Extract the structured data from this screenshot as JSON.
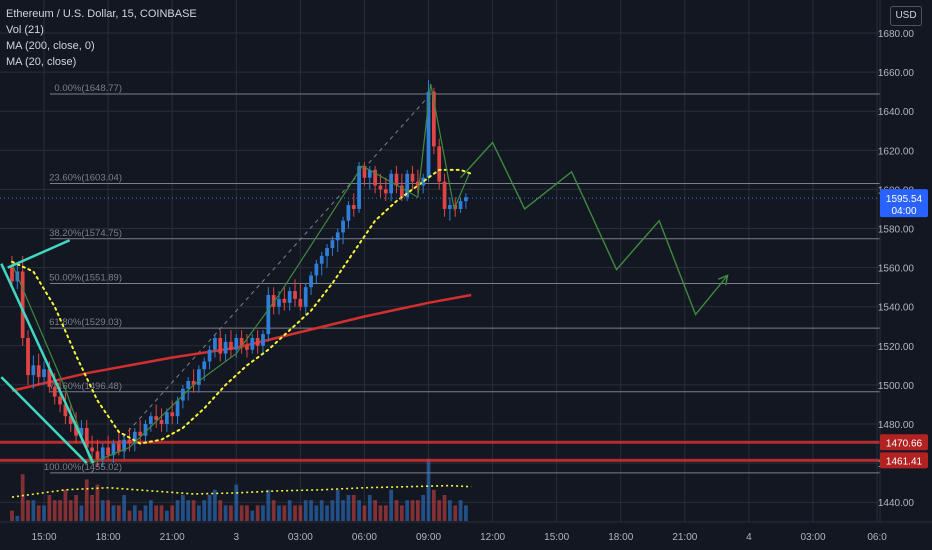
{
  "legend": {
    "symbol": "Ethereum / U.S. Dollar, 15, COINBASE",
    "vol": "Vol (21)",
    "ma200": "MA (200, close, 0)",
    "ma20": "MA (20, close)"
  },
  "currency_button": "USD",
  "colors": {
    "background": "#131722",
    "grid": "#2a2e39",
    "up": "#2f7ed8",
    "down": "#e04545",
    "ma200": "#d32f2f",
    "ma20": "#f5f53a",
    "trendline": "#3ed8c3",
    "projection": "#3f8a3f",
    "fib": "#7b7f8a"
  },
  "chart_data": {
    "type": "candlestick",
    "symbol": "Ethereum / U.S. Dollar, 15, COINBASE",
    "ylim": [
      1430,
      1690
    ],
    "price_ticks": [
      1440,
      1460,
      1480,
      1500,
      1520,
      1540,
      1560,
      1580,
      1600,
      1620,
      1640,
      1660,
      1680
    ],
    "price_tick_labels": [
      "1440.00",
      "1460.00",
      "1480.00",
      "1500.00",
      "1520.00",
      "1540.00",
      "1560.00",
      "1580.00",
      "1600.00",
      "1620.00",
      "1640.00",
      "1660.00",
      "1680.00"
    ],
    "time_labels": [
      "15:00",
      "18:00",
      "21:00",
      "3",
      "03:00",
      "06:00",
      "09:00",
      "12:00",
      "15:00",
      "18:00",
      "21:00",
      "4",
      "03:00",
      "06:0"
    ],
    "time_label_hours": [
      15,
      18,
      21,
      24,
      27,
      30,
      33,
      36,
      39,
      42,
      45,
      48,
      51,
      54
    ],
    "candles": [
      {
        "t": 13.5,
        "o": 1560,
        "h": 1566,
        "l": 1550,
        "c": 1553
      },
      {
        "t": 13.75,
        "o": 1553,
        "h": 1562,
        "l": 1549,
        "c": 1558
      },
      {
        "t": 14.0,
        "o": 1558,
        "h": 1566,
        "l": 1520,
        "c": 1524
      },
      {
        "t": 14.25,
        "o": 1524,
        "h": 1528,
        "l": 1500,
        "c": 1505
      },
      {
        "t": 14.5,
        "o": 1505,
        "h": 1515,
        "l": 1498,
        "c": 1510
      },
      {
        "t": 14.75,
        "o": 1510,
        "h": 1516,
        "l": 1500,
        "c": 1504
      },
      {
        "t": 15.0,
        "o": 1504,
        "h": 1512,
        "l": 1500,
        "c": 1508
      },
      {
        "t": 15.25,
        "o": 1508,
        "h": 1512,
        "l": 1496,
        "c": 1499
      },
      {
        "t": 15.5,
        "o": 1499,
        "h": 1506,
        "l": 1490,
        "c": 1494
      },
      {
        "t": 15.75,
        "o": 1494,
        "h": 1502,
        "l": 1486,
        "c": 1490
      },
      {
        "t": 16.0,
        "o": 1490,
        "h": 1496,
        "l": 1480,
        "c": 1484
      },
      {
        "t": 16.25,
        "o": 1484,
        "h": 1490,
        "l": 1476,
        "c": 1480
      },
      {
        "t": 16.5,
        "o": 1480,
        "h": 1486,
        "l": 1470,
        "c": 1474
      },
      {
        "t": 16.75,
        "o": 1474,
        "h": 1482,
        "l": 1470,
        "c": 1478
      },
      {
        "t": 17.0,
        "o": 1478,
        "h": 1482,
        "l": 1466,
        "c": 1468
      },
      {
        "t": 17.25,
        "o": 1468,
        "h": 1474,
        "l": 1462,
        "c": 1466
      },
      {
        "t": 17.5,
        "o": 1466,
        "h": 1472,
        "l": 1458,
        "c": 1462
      },
      {
        "t": 17.75,
        "o": 1462,
        "h": 1470,
        "l": 1458,
        "c": 1468
      },
      {
        "t": 18.0,
        "o": 1468,
        "h": 1474,
        "l": 1462,
        "c": 1464
      },
      {
        "t": 18.25,
        "o": 1464,
        "h": 1472,
        "l": 1460,
        "c": 1470
      },
      {
        "t": 18.5,
        "o": 1470,
        "h": 1476,
        "l": 1464,
        "c": 1466
      },
      {
        "t": 18.75,
        "o": 1466,
        "h": 1474,
        "l": 1462,
        "c": 1472
      },
      {
        "t": 19.0,
        "o": 1472,
        "h": 1478,
        "l": 1466,
        "c": 1470
      },
      {
        "t": 19.25,
        "o": 1470,
        "h": 1478,
        "l": 1466,
        "c": 1476
      },
      {
        "t": 19.5,
        "o": 1476,
        "h": 1482,
        "l": 1470,
        "c": 1474
      },
      {
        "t": 19.75,
        "o": 1474,
        "h": 1482,
        "l": 1470,
        "c": 1480
      },
      {
        "t": 20.0,
        "o": 1480,
        "h": 1486,
        "l": 1476,
        "c": 1484
      },
      {
        "t": 20.25,
        "o": 1484,
        "h": 1490,
        "l": 1478,
        "c": 1482
      },
      {
        "t": 20.5,
        "o": 1482,
        "h": 1488,
        "l": 1476,
        "c": 1480
      },
      {
        "t": 20.75,
        "o": 1480,
        "h": 1488,
        "l": 1476,
        "c": 1486
      },
      {
        "t": 21.0,
        "o": 1486,
        "h": 1492,
        "l": 1480,
        "c": 1484
      },
      {
        "t": 21.25,
        "o": 1484,
        "h": 1494,
        "l": 1480,
        "c": 1492
      },
      {
        "t": 21.5,
        "o": 1492,
        "h": 1500,
        "l": 1488,
        "c": 1498
      },
      {
        "t": 21.75,
        "o": 1498,
        "h": 1504,
        "l": 1492,
        "c": 1502
      },
      {
        "t": 22.0,
        "o": 1502,
        "h": 1508,
        "l": 1496,
        "c": 1500
      },
      {
        "t": 22.25,
        "o": 1500,
        "h": 1510,
        "l": 1496,
        "c": 1508
      },
      {
        "t": 22.5,
        "o": 1508,
        "h": 1514,
        "l": 1502,
        "c": 1512
      },
      {
        "t": 22.75,
        "o": 1512,
        "h": 1520,
        "l": 1508,
        "c": 1518
      },
      {
        "t": 23.0,
        "o": 1518,
        "h": 1526,
        "l": 1514,
        "c": 1524
      },
      {
        "t": 23.25,
        "o": 1524,
        "h": 1528,
        "l": 1512,
        "c": 1516
      },
      {
        "t": 23.5,
        "o": 1516,
        "h": 1526,
        "l": 1512,
        "c": 1522
      },
      {
        "t": 23.75,
        "o": 1522,
        "h": 1528,
        "l": 1514,
        "c": 1518
      },
      {
        "t": 24.0,
        "o": 1518,
        "h": 1526,
        "l": 1514,
        "c": 1524
      },
      {
        "t": 24.25,
        "o": 1524,
        "h": 1528,
        "l": 1516,
        "c": 1520
      },
      {
        "t": 24.5,
        "o": 1520,
        "h": 1526,
        "l": 1514,
        "c": 1518
      },
      {
        "t": 24.75,
        "o": 1518,
        "h": 1526,
        "l": 1516,
        "c": 1524
      },
      {
        "t": 25.0,
        "o": 1524,
        "h": 1528,
        "l": 1516,
        "c": 1520
      },
      {
        "t": 25.25,
        "o": 1520,
        "h": 1528,
        "l": 1516,
        "c": 1526
      },
      {
        "t": 25.5,
        "o": 1526,
        "h": 1550,
        "l": 1522,
        "c": 1546
      },
      {
        "t": 25.75,
        "o": 1546,
        "h": 1550,
        "l": 1536,
        "c": 1540
      },
      {
        "t": 26.0,
        "o": 1540,
        "h": 1548,
        "l": 1536,
        "c": 1544
      },
      {
        "t": 26.25,
        "o": 1544,
        "h": 1550,
        "l": 1538,
        "c": 1542
      },
      {
        "t": 26.5,
        "o": 1542,
        "h": 1550,
        "l": 1538,
        "c": 1548
      },
      {
        "t": 26.75,
        "o": 1548,
        "h": 1554,
        "l": 1540,
        "c": 1544
      },
      {
        "t": 27.0,
        "o": 1544,
        "h": 1552,
        "l": 1538,
        "c": 1540
      },
      {
        "t": 27.25,
        "o": 1540,
        "h": 1552,
        "l": 1536,
        "c": 1550
      },
      {
        "t": 27.5,
        "o": 1550,
        "h": 1558,
        "l": 1546,
        "c": 1556
      },
      {
        "t": 27.75,
        "o": 1556,
        "h": 1564,
        "l": 1552,
        "c": 1562
      },
      {
        "t": 28.0,
        "o": 1562,
        "h": 1568,
        "l": 1556,
        "c": 1566
      },
      {
        "t": 28.25,
        "o": 1566,
        "h": 1572,
        "l": 1560,
        "c": 1570
      },
      {
        "t": 28.5,
        "o": 1570,
        "h": 1576,
        "l": 1566,
        "c": 1574
      },
      {
        "t": 28.75,
        "o": 1574,
        "h": 1580,
        "l": 1568,
        "c": 1578
      },
      {
        "t": 29.0,
        "o": 1578,
        "h": 1586,
        "l": 1572,
        "c": 1584
      },
      {
        "t": 29.25,
        "o": 1584,
        "h": 1594,
        "l": 1580,
        "c": 1592
      },
      {
        "t": 29.5,
        "o": 1592,
        "h": 1598,
        "l": 1586,
        "c": 1590
      },
      {
        "t": 29.75,
        "o": 1590,
        "h": 1614,
        "l": 1588,
        "c": 1612
      },
      {
        "t": 30.0,
        "o": 1612,
        "h": 1614,
        "l": 1602,
        "c": 1606
      },
      {
        "t": 30.25,
        "o": 1606,
        "h": 1612,
        "l": 1600,
        "c": 1610
      },
      {
        "t": 30.5,
        "o": 1610,
        "h": 1612,
        "l": 1598,
        "c": 1602
      },
      {
        "t": 30.75,
        "o": 1602,
        "h": 1608,
        "l": 1596,
        "c": 1600
      },
      {
        "t": 31.0,
        "o": 1600,
        "h": 1606,
        "l": 1594,
        "c": 1598
      },
      {
        "t": 31.25,
        "o": 1598,
        "h": 1610,
        "l": 1594,
        "c": 1608
      },
      {
        "t": 31.5,
        "o": 1608,
        "h": 1612,
        "l": 1598,
        "c": 1602
      },
      {
        "t": 31.75,
        "o": 1602,
        "h": 1608,
        "l": 1594,
        "c": 1596
      },
      {
        "t": 32.0,
        "o": 1596,
        "h": 1610,
        "l": 1594,
        "c": 1608
      },
      {
        "t": 32.25,
        "o": 1608,
        "h": 1612,
        "l": 1600,
        "c": 1604
      },
      {
        "t": 32.5,
        "o": 1604,
        "h": 1610,
        "l": 1598,
        "c": 1602
      },
      {
        "t": 32.75,
        "o": 1602,
        "h": 1608,
        "l": 1598,
        "c": 1606
      },
      {
        "t": 33.0,
        "o": 1606,
        "h": 1656,
        "l": 1604,
        "c": 1650
      },
      {
        "t": 33.25,
        "o": 1650,
        "h": 1652,
        "l": 1618,
        "c": 1622
      },
      {
        "t": 33.5,
        "o": 1622,
        "h": 1626,
        "l": 1600,
        "c": 1604
      },
      {
        "t": 33.75,
        "o": 1604,
        "h": 1608,
        "l": 1586,
        "c": 1590
      },
      {
        "t": 34.0,
        "o": 1590,
        "h": 1596,
        "l": 1584,
        "c": 1592
      },
      {
        "t": 34.25,
        "o": 1592,
        "h": 1596,
        "l": 1586,
        "c": 1590
      },
      {
        "t": 34.5,
        "o": 1590,
        "h": 1596,
        "l": 1588,
        "c": 1594
      },
      {
        "t": 34.75,
        "o": 1594,
        "h": 1598,
        "l": 1590,
        "c": 1596
      }
    ],
    "ma200": [
      {
        "t": 13.5,
        "v": 1497
      },
      {
        "t": 17,
        "v": 1506
      },
      {
        "t": 21,
        "v": 1514
      },
      {
        "t": 24,
        "v": 1519
      },
      {
        "t": 27,
        "v": 1527
      },
      {
        "t": 30,
        "v": 1535
      },
      {
        "t": 33,
        "v": 1542
      },
      {
        "t": 35,
        "v": 1546
      }
    ],
    "ma20": [
      {
        "t": 13.5,
        "v": 1563
      },
      {
        "t": 14.5,
        "v": 1558
      },
      {
        "t": 15.5,
        "v": 1540
      },
      {
        "t": 16.5,
        "v": 1515
      },
      {
        "t": 17.5,
        "v": 1492
      },
      {
        "t": 18.5,
        "v": 1476
      },
      {
        "t": 19.5,
        "v": 1470
      },
      {
        "t": 20.5,
        "v": 1472
      },
      {
        "t": 21.5,
        "v": 1478
      },
      {
        "t": 22.5,
        "v": 1488
      },
      {
        "t": 23.5,
        "v": 1500
      },
      {
        "t": 24.5,
        "v": 1510
      },
      {
        "t": 25.5,
        "v": 1518
      },
      {
        "t": 26.5,
        "v": 1528
      },
      {
        "t": 27.5,
        "v": 1538
      },
      {
        "t": 28.5,
        "v": 1552
      },
      {
        "t": 29.5,
        "v": 1568
      },
      {
        "t": 30.5,
        "v": 1584
      },
      {
        "t": 31.5,
        "v": 1594
      },
      {
        "t": 32.5,
        "v": 1602
      },
      {
        "t": 33.5,
        "v": 1610
      },
      {
        "t": 34.5,
        "v": 1610
      },
      {
        "t": 35,
        "v": 1608
      }
    ],
    "fib_levels": [
      {
        "label": "0.00%(1648.77)",
        "price": 1648.77
      },
      {
        "label": "23.60%(1603.04)",
        "price": 1603.04
      },
      {
        "label": "38.20%(1574.75)",
        "price": 1574.75
      },
      {
        "label": "50.00%(1551.89)",
        "price": 1551.89
      },
      {
        "label": "61.80%(1529.03)",
        "price": 1529.03
      },
      {
        "label": "78.60%(1496.48)",
        "price": 1496.48
      },
      {
        "label": "100.00%(1455.02)",
        "price": 1455.02
      }
    ],
    "horizontal_levels": [
      {
        "label": "1470.66",
        "price": 1470.66
      },
      {
        "label": "1461.41",
        "price": 1461.41
      }
    ],
    "last_price": {
      "label": "1595.54",
      "price": 1595.54,
      "countdown": "04:00"
    },
    "projection_path": [
      {
        "t": 34.5,
        "v": 1606
      },
      {
        "t": 36,
        "v": 1624
      },
      {
        "t": 37.5,
        "v": 1590
      },
      {
        "t": 39.7,
        "v": 1609
      },
      {
        "t": 41.8,
        "v": 1559
      },
      {
        "t": 43.8,
        "v": 1584
      },
      {
        "t": 45.5,
        "v": 1536
      },
      {
        "t": 47.0,
        "v": 1556
      }
    ],
    "wave_path": [
      {
        "t": 13.5,
        "v": 1562
      },
      {
        "t": 16,
        "v": 1498
      },
      {
        "t": 17.2,
        "v": 1460
      },
      {
        "t": 19,
        "v": 1468
      },
      {
        "t": 22,
        "v": 1500
      },
      {
        "t": 24,
        "v": 1516
      },
      {
        "t": 26,
        "v": 1546
      },
      {
        "t": 29.9,
        "v": 1612
      },
      {
        "t": 32.5,
        "v": 1596
      },
      {
        "t": 33.1,
        "v": 1654
      },
      {
        "t": 34.2,
        "v": 1590
      },
      {
        "t": 34.9,
        "v": 1608
      }
    ],
    "trendlines": [
      {
        "from": {
          "t": 13.0,
          "v": 1562
        },
        "to": {
          "t": 17.3,
          "v": 1460
        }
      },
      {
        "from": {
          "t": 13.0,
          "v": 1504
        },
        "to": {
          "t": 17.0,
          "v": 1460
        }
      },
      {
        "from": {
          "t": 13.3,
          "v": 1560
        },
        "to": {
          "t": 16.2,
          "v": 1574
        }
      }
    ],
    "volume": [
      2,
      1,
      9,
      4,
      4,
      3,
      3,
      5,
      4,
      4,
      6,
      4,
      5,
      3,
      8,
      5,
      7,
      4,
      4,
      3,
      3,
      5,
      2,
      3,
      2,
      3,
      4,
      3,
      3,
      2,
      3,
      4,
      5,
      4,
      4,
      3,
      4,
      5,
      6,
      4,
      3,
      3,
      7,
      3,
      3,
      2,
      3,
      3,
      6,
      4,
      3,
      3,
      4,
      3,
      3,
      4,
      4,
      3,
      4,
      3,
      4,
      6,
      4,
      5,
      5,
      4,
      3,
      5,
      4,
      3,
      3,
      6,
      4,
      3,
      4,
      4,
      4,
      5,
      12,
      6,
      4,
      5,
      4,
      3,
      4,
      3
    ],
    "volume_ma": [
      {
        "t": 13.5,
        "v": 2.3
      },
      {
        "t": 16,
        "v": 3.0
      },
      {
        "t": 18,
        "v": 3.2
      },
      {
        "t": 20,
        "v": 2.9
      },
      {
        "t": 22,
        "v": 2.6
      },
      {
        "t": 24,
        "v": 2.7
      },
      {
        "t": 26,
        "v": 2.9
      },
      {
        "t": 28,
        "v": 3.0
      },
      {
        "t": 30,
        "v": 3.2
      },
      {
        "t": 32,
        "v": 3.3
      },
      {
        "t": 34,
        "v": 3.4
      },
      {
        "t": 35,
        "v": 3.3
      }
    ]
  }
}
